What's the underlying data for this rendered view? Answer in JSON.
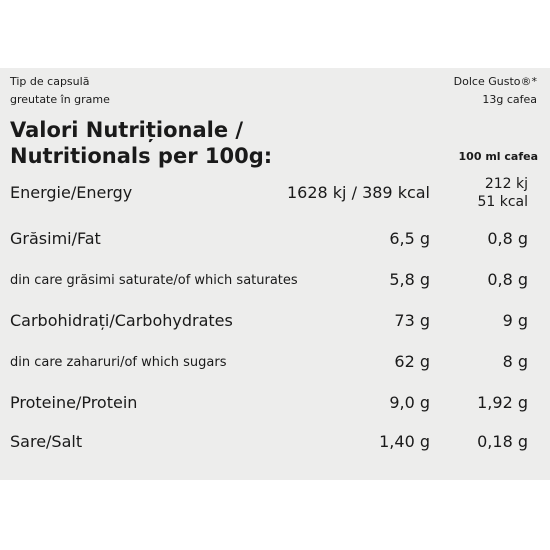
{
  "header": {
    "left_line1": "Tip de capsulă",
    "left_line2": "greutate în grame",
    "right_line1": "Dolce Gusto®*",
    "right_line2": "13g cafea"
  },
  "title": {
    "line1": "Valori Nutriționale /",
    "line2": "Nutritionals per 100g:",
    "column2_header": "100 ml cafea"
  },
  "rows": [
    {
      "label": "Energie/Energy",
      "per100": "1628 kj / 389 kcal",
      "per100ml_1": "212 kj",
      "per100ml_2": "51 kcal"
    },
    {
      "label": "Grăsimi/Fat",
      "per100": "6,5 g",
      "per100ml": "0,8 g"
    },
    {
      "label": "din care grăsimi saturate/of which saturates",
      "per100": "5,8 g",
      "per100ml": "0,8 g"
    },
    {
      "label": "Carbohidrați/Carbohydrates",
      "per100": "73 g",
      "per100ml": "9 g"
    },
    {
      "label": "din care zaharuri/of which sugars",
      "per100": "62 g",
      "per100ml": "8 g"
    },
    {
      "label": "Proteine/Protein",
      "per100": "9,0 g",
      "per100ml": "1,92 g"
    },
    {
      "label": "Sare/Salt",
      "per100": "1,40 g",
      "per100ml": "0,18 g"
    }
  ]
}
